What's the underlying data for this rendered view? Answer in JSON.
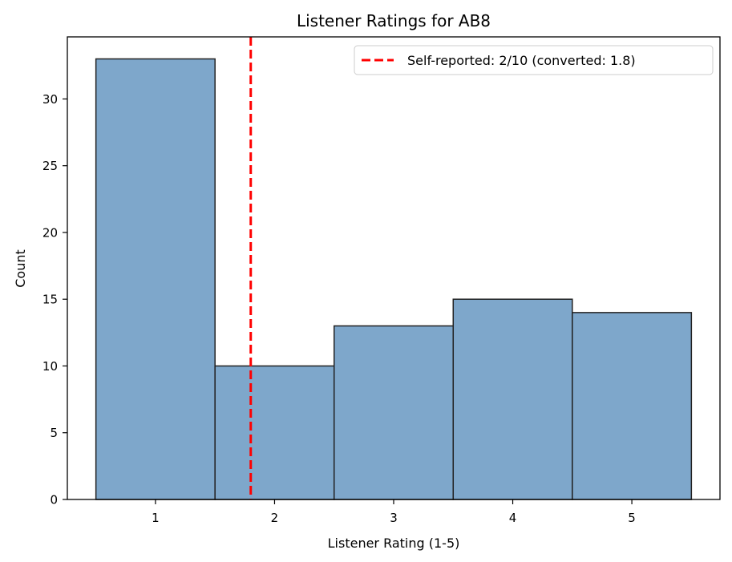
{
  "chart_data": {
    "type": "bar",
    "title": "Listener Ratings for AB8",
    "xlabel": "Listener Rating (1-5)",
    "ylabel": "Count",
    "categories": [
      "1",
      "2",
      "3",
      "4",
      "5"
    ],
    "x": [
      1,
      2,
      3,
      4,
      5
    ],
    "values": [
      33,
      10,
      13,
      15,
      14
    ],
    "bar_width": 1,
    "xlim": [
      0.26,
      5.74
    ],
    "ylim": [
      0,
      34.65
    ],
    "xticks": [
      1,
      2,
      3,
      4,
      5
    ],
    "yticks": [
      0,
      5,
      10,
      15,
      20,
      25,
      30
    ],
    "grid": false,
    "bar_color": "#7ea7cb",
    "bar_edge_color": "#222222",
    "reference_line": {
      "x": 1.8,
      "label": "Self-reported: 2/10 (converted: 1.8)",
      "color": "#ff0000",
      "style": "dashed"
    },
    "legend": {
      "position": "upper right"
    }
  }
}
